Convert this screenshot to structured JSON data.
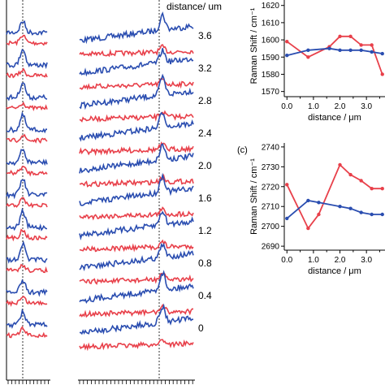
{
  "colors": {
    "red": "#e8404a",
    "blue": "#2a4db0",
    "axis": "#000000"
  },
  "figure_header": {
    "distance_label": "distance/ um"
  },
  "chart_data": [
    {
      "type": "line",
      "name": "stacked-spectra",
      "row_labels": [
        "3.6",
        "3.2",
        "2.8",
        "2.4",
        "2.0",
        "1.6",
        "1.2",
        "0.8",
        "0.4",
        "0"
      ]
    },
    {
      "type": "line",
      "panel_label": "",
      "xlabel": "distance / μm",
      "ylabel": "Raman Shift / cm⁻¹",
      "xlim": [
        -0.1,
        3.7
      ],
      "ylim": [
        1567,
        1626
      ],
      "yticks": [
        1570,
        1580,
        1590,
        1600,
        1610,
        1620
      ],
      "xticks": [
        "0.0",
        "1.0",
        "2.0",
        "3.0"
      ],
      "x": [
        0,
        0.8,
        1.6,
        2.0,
        2.4,
        2.8,
        3.2,
        3.6
      ],
      "series": [
        {
          "color": "red",
          "values": [
            1599,
            1590,
            1596,
            1602,
            1602,
            1597,
            1597,
            1580
          ]
        },
        {
          "color": "blue",
          "values": [
            1591,
            1594,
            1595,
            1594,
            1594,
            1594,
            1593,
            1592
          ]
        }
      ]
    },
    {
      "type": "line",
      "panel_label": "(c)",
      "xlabel": "distance / μm",
      "ylabel": "Raman Shift / cm⁻¹",
      "xlim": [
        -0.1,
        3.7
      ],
      "ylim": [
        2688,
        2742
      ],
      "yticks": [
        2690,
        2700,
        2710,
        2720,
        2730,
        2740
      ],
      "xticks": [
        "0.0",
        "1.0",
        "2.0",
        "3.0"
      ],
      "x": [
        0,
        0.8,
        1.2,
        2.0,
        2.4,
        2.8,
        3.2,
        3.6
      ],
      "series": [
        {
          "color": "red",
          "values": [
            2721,
            2699,
            2706,
            2731,
            2726,
            2723,
            2719,
            2719
          ]
        },
        {
          "color": "blue",
          "values": [
            2704,
            2713,
            2712,
            2710,
            2709,
            2707,
            2706,
            2706
          ]
        }
      ]
    }
  ]
}
